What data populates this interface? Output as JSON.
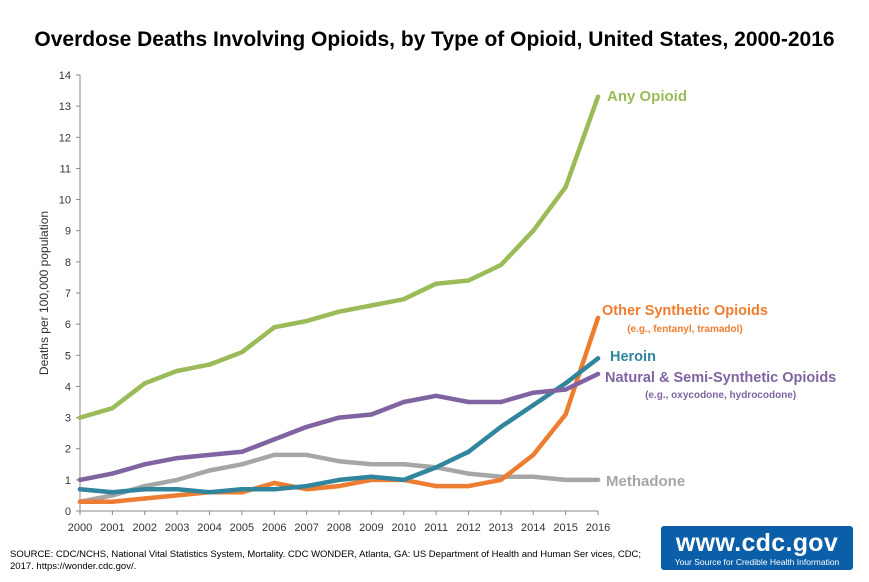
{
  "title": "Overdose Deaths Involving Opioids, by Type of Opioid, United States, 2000-2016",
  "source": "SOURCE: CDC/NCHS, National Vital Statistics System, Mortality. CDC WONDER, Atlanta, GA: US Department of Health and Human Ser vices, CDC; 2017. https://wonder.cdc.gov/.",
  "logo": {
    "url": "www.cdc.gov",
    "tagline": "Your Source for Credible Health Information"
  },
  "chart_data": {
    "type": "line",
    "ylabel": "Deaths per 100,000 population",
    "xlabel": "",
    "ylim": [
      0,
      14
    ],
    "yticks": [
      0,
      1,
      2,
      3,
      4,
      5,
      6,
      7,
      8,
      9,
      10,
      11,
      12,
      13,
      14
    ],
    "x": [
      "2000",
      "2001",
      "2002",
      "2003",
      "2004",
      "2005",
      "2006",
      "2007",
      "2008",
      "2009",
      "2010",
      "2011",
      "2012",
      "2013",
      "2014",
      "2015",
      "2016"
    ],
    "grid": false,
    "legend": "direct labels at right",
    "series": [
      {
        "name": "Methadone",
        "note": "",
        "color": "#a6a6a6",
        "values": [
          0.3,
          0.5,
          0.8,
          1.0,
          1.3,
          1.5,
          1.8,
          1.8,
          1.6,
          1.5,
          1.5,
          1.4,
          1.2,
          1.1,
          1.1,
          1.0,
          1.0
        ]
      },
      {
        "name": "Other Synthetic Opioids",
        "note": "(e.g., fentanyl, tramadol)",
        "color": "#ed7d31",
        "values": [
          0.3,
          0.3,
          0.4,
          0.5,
          0.6,
          0.6,
          0.9,
          0.7,
          0.8,
          1.0,
          1.0,
          0.8,
          0.8,
          1.0,
          1.8,
          3.1,
          6.2
        ]
      },
      {
        "name": "Heroin",
        "note": "",
        "color": "#31859c",
        "values": [
          0.7,
          0.6,
          0.7,
          0.7,
          0.6,
          0.7,
          0.7,
          0.8,
          1.0,
          1.1,
          1.0,
          1.4,
          1.9,
          2.7,
          3.4,
          4.1,
          4.9
        ]
      },
      {
        "name": "Natural & Semi-Synthetic Opioids",
        "note": "(e.g., oxycodone, hydrocodone)",
        "color": "#8064a2",
        "values": [
          1.0,
          1.2,
          1.5,
          1.7,
          1.8,
          1.9,
          2.3,
          2.7,
          3.0,
          3.1,
          3.5,
          3.7,
          3.5,
          3.5,
          3.8,
          3.9,
          4.4
        ]
      },
      {
        "name": "Any Opioid",
        "note": "",
        "color": "#9bbb59",
        "values": [
          3.0,
          3.3,
          4.1,
          4.5,
          4.7,
          5.1,
          5.9,
          6.1,
          6.4,
          6.6,
          6.8,
          7.3,
          7.4,
          7.9,
          9.0,
          10.4,
          13.3
        ]
      }
    ]
  }
}
